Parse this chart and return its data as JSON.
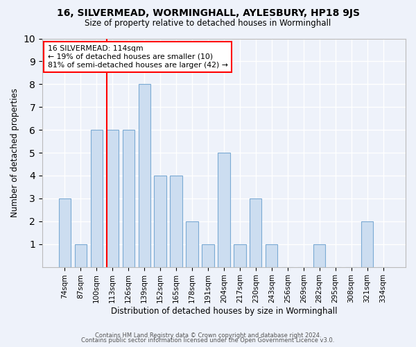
{
  "title1": "16, SILVERMEAD, WORMINGHALL, AYLESBURY, HP18 9JS",
  "title2": "Size of property relative to detached houses in Worminghall",
  "xlabel": "Distribution of detached houses by size in Worminghall",
  "ylabel": "Number of detached properties",
  "categories": [
    "74sqm",
    "87sqm",
    "100sqm",
    "113sqm",
    "126sqm",
    "139sqm",
    "152sqm",
    "165sqm",
    "178sqm",
    "191sqm",
    "204sqm",
    "217sqm",
    "230sqm",
    "243sqm",
    "256sqm",
    "269sqm",
    "282sqm",
    "295sqm",
    "308sqm",
    "321sqm",
    "334sqm"
  ],
  "values": [
    3,
    1,
    6,
    6,
    6,
    8,
    4,
    4,
    2,
    1,
    5,
    1,
    3,
    1,
    0,
    0,
    1,
    0,
    0,
    2,
    0
  ],
  "bar_color": "#ccddf0",
  "bar_edgecolor": "#7baad4",
  "vline_color": "red",
  "vline_x_index": 3,
  "annotation_text": "16 SILVERMEAD: 114sqm\n← 19% of detached houses are smaller (10)\n81% of semi-detached houses are larger (42) →",
  "annotation_box_color": "white",
  "annotation_box_edgecolor": "red",
  "ylim": [
    0,
    10
  ],
  "yticks": [
    0,
    1,
    2,
    3,
    4,
    5,
    6,
    7,
    8,
    9,
    10
  ],
  "footer1": "Contains HM Land Registry data © Crown copyright and database right 2024.",
  "footer2": "Contains public sector information licensed under the Open Government Licence v3.0.",
  "background_color": "#eef2fa",
  "grid_color": "white",
  "bar_width": 0.75
}
